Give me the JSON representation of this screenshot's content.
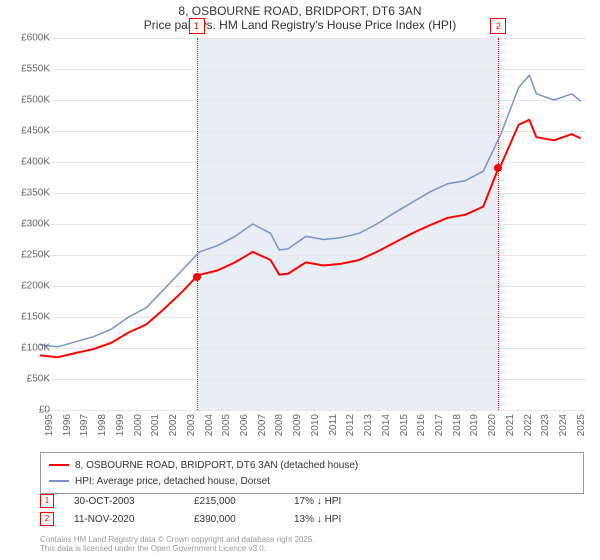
{
  "title": {
    "line1": "8, OSBOURNE ROAD, BRIDPORT, DT6 3AN",
    "line2": "Price paid vs. HM Land Registry's House Price Index (HPI)"
  },
  "chart": {
    "type": "line",
    "background_color": "#ffffff",
    "plot_band_color": "#e6ebf5",
    "grid_color": "#e6e6e6",
    "x_range": [
      1995,
      2025.8
    ],
    "y_range": [
      0,
      600000
    ],
    "y_ticks": [
      0,
      50000,
      100000,
      150000,
      200000,
      250000,
      300000,
      350000,
      400000,
      450000,
      500000,
      550000,
      600000
    ],
    "y_tick_labels": [
      "£0",
      "£50K",
      "£100K",
      "£150K",
      "£200K",
      "£250K",
      "£300K",
      "£350K",
      "£400K",
      "£450K",
      "£500K",
      "£550K",
      "£600K"
    ],
    "x_ticks": [
      1995,
      1996,
      1997,
      1998,
      1999,
      2000,
      2001,
      2002,
      2003,
      2004,
      2005,
      2006,
      2007,
      2008,
      2009,
      2010,
      2011,
      2012,
      2013,
      2014,
      2015,
      2016,
      2017,
      2018,
      2019,
      2020,
      2021,
      2022,
      2023,
      2024,
      2025
    ],
    "plot_band": {
      "from": 2003.83,
      "to": 2020.86
    },
    "label_fontsize": 10,
    "title_fontsize": 12,
    "series": [
      {
        "name": "HPI: Average price, detached house, Dorset",
        "color": "#7694ca",
        "line_width": 1.5,
        "data": [
          [
            1995,
            105000
          ],
          [
            1996,
            102000
          ],
          [
            1997,
            110000
          ],
          [
            1998,
            118000
          ],
          [
            1999,
            130000
          ],
          [
            2000,
            150000
          ],
          [
            2001,
            165000
          ],
          [
            2002,
            195000
          ],
          [
            2003,
            225000
          ],
          [
            2004,
            255000
          ],
          [
            2005,
            265000
          ],
          [
            2006,
            280000
          ],
          [
            2007,
            300000
          ],
          [
            2008,
            285000
          ],
          [
            2008.5,
            258000
          ],
          [
            2009,
            260000
          ],
          [
            2010,
            280000
          ],
          [
            2011,
            275000
          ],
          [
            2012,
            278000
          ],
          [
            2013,
            285000
          ],
          [
            2014,
            300000
          ],
          [
            2015,
            318000
          ],
          [
            2016,
            335000
          ],
          [
            2017,
            352000
          ],
          [
            2018,
            365000
          ],
          [
            2019,
            370000
          ],
          [
            2020,
            385000
          ],
          [
            2021,
            445000
          ],
          [
            2022,
            520000
          ],
          [
            2022.6,
            540000
          ],
          [
            2023,
            510000
          ],
          [
            2024,
            500000
          ],
          [
            2025,
            510000
          ],
          [
            2025.5,
            498000
          ]
        ]
      },
      {
        "name": "8, OSBOURNE ROAD, BRIDPORT, DT6 3AN (detached house)",
        "color": "#ff0000",
        "line_width": 2,
        "data": [
          [
            1995,
            88000
          ],
          [
            1996,
            85000
          ],
          [
            1997,
            92000
          ],
          [
            1998,
            98000
          ],
          [
            1999,
            108000
          ],
          [
            2000,
            125000
          ],
          [
            2001,
            138000
          ],
          [
            2002,
            163000
          ],
          [
            2003,
            190000
          ],
          [
            2003.83,
            215000
          ],
          [
            2004,
            218000
          ],
          [
            2005,
            225000
          ],
          [
            2006,
            238000
          ],
          [
            2007,
            255000
          ],
          [
            2008,
            242000
          ],
          [
            2008.5,
            218000
          ],
          [
            2009,
            220000
          ],
          [
            2010,
            238000
          ],
          [
            2011,
            233000
          ],
          [
            2012,
            236000
          ],
          [
            2013,
            242000
          ],
          [
            2014,
            255000
          ],
          [
            2015,
            270000
          ],
          [
            2016,
            285000
          ],
          [
            2017,
            298000
          ],
          [
            2018,
            310000
          ],
          [
            2019,
            315000
          ],
          [
            2020,
            328000
          ],
          [
            2020.86,
            390000
          ],
          [
            2021,
            395000
          ],
          [
            2022,
            460000
          ],
          [
            2022.6,
            468000
          ],
          [
            2023,
            440000
          ],
          [
            2024,
            435000
          ],
          [
            2025,
            445000
          ],
          [
            2025.5,
            438000
          ]
        ]
      }
    ],
    "markers": [
      {
        "id": "1",
        "x": 2003.83,
        "y": 215000,
        "color": "#ff0000"
      },
      {
        "id": "2",
        "x": 2020.86,
        "y": 390000,
        "color": "#ff0000"
      }
    ]
  },
  "legend": {
    "items": [
      {
        "label": "8, OSBOURNE ROAD, BRIDPORT, DT6 3AN (detached house)",
        "color": "#ff0000"
      },
      {
        "label": "HPI: Average price, detached house, Dorset",
        "color": "#7694ca"
      }
    ]
  },
  "sales": [
    {
      "id": "1",
      "date": "30-OCT-2003",
      "price": "£215,000",
      "hpi_diff": "17% ↓ HPI"
    },
    {
      "id": "2",
      "date": "11-NOV-2020",
      "price": "£390,000",
      "hpi_diff": "13% ↓ HPI"
    }
  ],
  "credits": {
    "line1": "Contains HM Land Registry data © Crown copyright and database right 2025.",
    "line2": "This data is licensed under the Open Government Licence v3.0."
  }
}
